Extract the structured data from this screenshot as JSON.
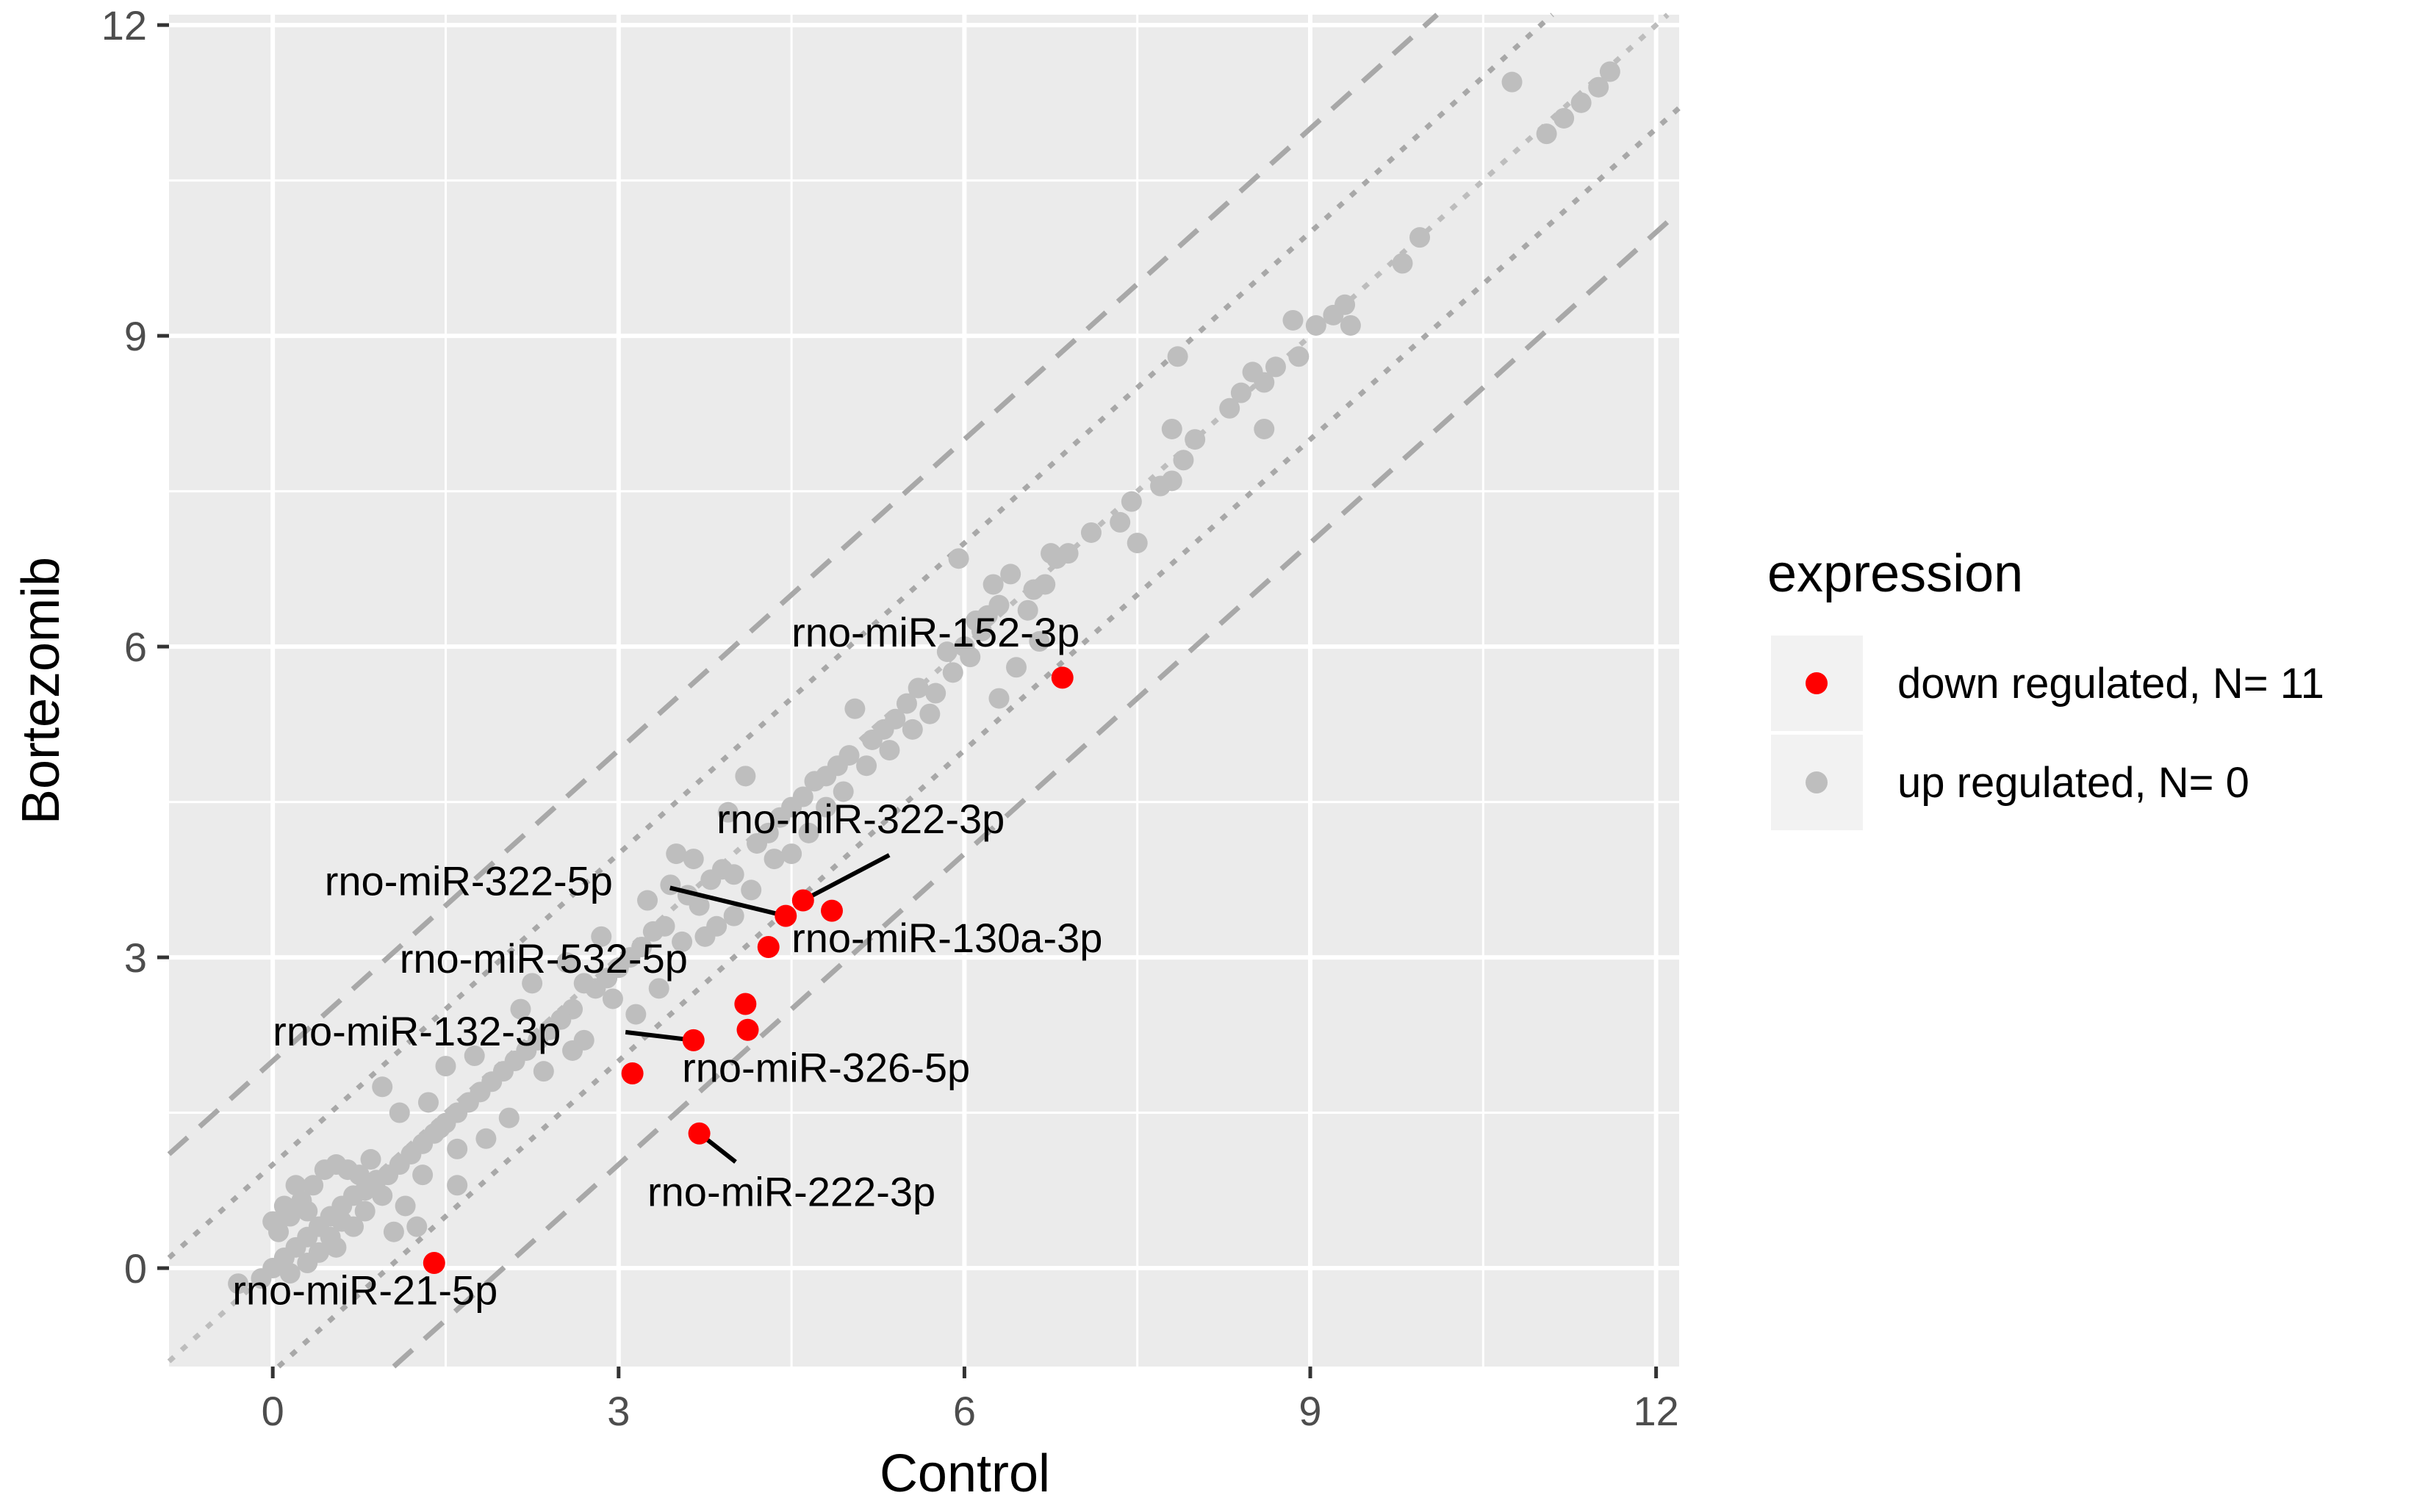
{
  "chart_data": {
    "type": "scatter",
    "xlabel": "Control",
    "ylabel": "Bortezomib",
    "xlim": [
      -0.9,
      12.2
    ],
    "ylim": [
      -0.95,
      12.1
    ],
    "xticks": [
      0,
      3,
      6,
      9,
      12
    ],
    "yticks": [
      0,
      3,
      6,
      9,
      12
    ],
    "grid": true,
    "legend": {
      "title": "expression",
      "position": "right",
      "entries": [
        {
          "label": "down regulated, N= 11",
          "color": "#ff0000"
        },
        {
          "label": "up regulated, N= 0",
          "color": "#bebebe"
        }
      ]
    },
    "reference_lines": [
      {
        "intercept": 0,
        "style": "dotted-light"
      },
      {
        "intercept": 1,
        "style": "dotted"
      },
      {
        "intercept": -1,
        "style": "dotted"
      },
      {
        "intercept": 2,
        "style": "dashed"
      },
      {
        "intercept": -2,
        "style": "dashed"
      }
    ],
    "series": [
      {
        "group": "down",
        "color": "#ff0000",
        "points": [
          {
            "x": 6.85,
            "y": 5.7,
            "label": "rno-miR-152-3p",
            "label_x": 4.5,
            "label_y": 6.0
          },
          {
            "x": 4.6,
            "y": 3.55,
            "label": "rno-miR-322-3p",
            "label_x": 3.85,
            "label_y": 4.2,
            "line": true
          },
          {
            "x": 4.3,
            "y": 3.1,
            "label": "rno-miR-130a-3p",
            "label_x": 4.5,
            "label_y": 3.05
          },
          {
            "x": 4.45,
            "y": 3.4,
            "label": "rno-miR-322-5p",
            "label_x": 0.45,
            "label_y": 3.6,
            "line": true
          },
          {
            "x": 4.85,
            "y": 3.45
          },
          {
            "x": 4.1,
            "y": 2.55,
            "label": "rno-miR-532-5p",
            "label_x": 1.1,
            "label_y": 2.85
          },
          {
            "x": 4.12,
            "y": 2.3
          },
          {
            "x": 3.65,
            "y": 2.2,
            "label": "rno-miR-132-3p",
            "label_x": 0.0,
            "label_y": 2.15,
            "line": true
          },
          {
            "x": 3.12,
            "y": 1.88,
            "label": "rno-miR-326-5p",
            "label_x": 3.55,
            "label_y": 1.8
          },
          {
            "x": 3.7,
            "y": 1.3,
            "label": "rno-miR-222-3p",
            "label_x": 3.25,
            "label_y": 0.6,
            "line": true
          },
          {
            "x": 1.4,
            "y": 0.05,
            "label": "rno-miR-21-5p",
            "label_x": -0.35,
            "label_y": -0.35
          }
        ]
      },
      {
        "group": "up",
        "color": "#bebebe",
        "points": [
          {
            "x": 10.75,
            "y": 11.45
          },
          {
            "x": 11.05,
            "y": 10.95
          },
          {
            "x": 11.2,
            "y": 11.1
          },
          {
            "x": 11.35,
            "y": 11.25
          },
          {
            "x": 11.5,
            "y": 11.4
          },
          {
            "x": 11.6,
            "y": 11.55
          },
          {
            "x": 9.95,
            "y": 9.95
          },
          {
            "x": 9.8,
            "y": 9.7
          },
          {
            "x": 9.3,
            "y": 9.3
          },
          {
            "x": 9.2,
            "y": 9.2
          },
          {
            "x": 9.35,
            "y": 9.1
          },
          {
            "x": 9.05,
            "y": 9.1
          },
          {
            "x": 8.85,
            "y": 9.15
          },
          {
            "x": 8.9,
            "y": 8.8
          },
          {
            "x": 8.7,
            "y": 8.7
          },
          {
            "x": 8.6,
            "y": 8.55
          },
          {
            "x": 8.5,
            "y": 8.65
          },
          {
            "x": 8.4,
            "y": 8.45
          },
          {
            "x": 8.3,
            "y": 8.3
          },
          {
            "x": 8.6,
            "y": 8.1
          },
          {
            "x": 7.85,
            "y": 8.8
          },
          {
            "x": 7.8,
            "y": 8.1
          },
          {
            "x": 8.0,
            "y": 8.0
          },
          {
            "x": 7.9,
            "y": 7.8
          },
          {
            "x": 7.8,
            "y": 7.6
          },
          {
            "x": 7.7,
            "y": 7.55
          },
          {
            "x": 7.45,
            "y": 7.4
          },
          {
            "x": 7.35,
            "y": 7.2
          },
          {
            "x": 7.5,
            "y": 7.0
          },
          {
            "x": 7.1,
            "y": 7.1
          },
          {
            "x": 6.9,
            "y": 6.9
          },
          {
            "x": 6.8,
            "y": 6.85
          },
          {
            "x": 6.6,
            "y": 6.55
          },
          {
            "x": 6.4,
            "y": 6.7
          },
          {
            "x": 6.3,
            "y": 6.4
          },
          {
            "x": 6.2,
            "y": 6.3
          },
          {
            "x": 6.1,
            "y": 6.25
          },
          {
            "x": 6.0,
            "y": 6.0
          },
          {
            "x": 5.95,
            "y": 6.85
          },
          {
            "x": 6.45,
            "y": 5.8
          },
          {
            "x": 6.3,
            "y": 5.5
          },
          {
            "x": 5.85,
            "y": 5.95
          },
          {
            "x": 5.75,
            "y": 5.55
          },
          {
            "x": 5.6,
            "y": 5.6
          },
          {
            "x": 5.5,
            "y": 5.45
          },
          {
            "x": 5.4,
            "y": 5.3
          },
          {
            "x": 5.3,
            "y": 5.2
          },
          {
            "x": 5.2,
            "y": 5.1
          },
          {
            "x": 5.05,
            "y": 5.4
          },
          {
            "x": 5.0,
            "y": 4.95
          },
          {
            "x": 4.9,
            "y": 4.85
          },
          {
            "x": 4.8,
            "y": 4.75
          },
          {
            "x": 4.7,
            "y": 4.7
          },
          {
            "x": 4.6,
            "y": 4.55
          },
          {
            "x": 4.5,
            "y": 4.45
          },
          {
            "x": 4.4,
            "y": 4.35
          },
          {
            "x": 4.3,
            "y": 4.2
          },
          {
            "x": 4.2,
            "y": 4.1
          },
          {
            "x": 4.1,
            "y": 4.75
          },
          {
            "x": 4.0,
            "y": 3.8
          },
          {
            "x": 3.9,
            "y": 3.85
          },
          {
            "x": 3.8,
            "y": 3.75
          },
          {
            "x": 3.7,
            "y": 3.5
          },
          {
            "x": 3.6,
            "y": 3.6
          },
          {
            "x": 3.5,
            "y": 4.0
          },
          {
            "x": 3.4,
            "y": 3.3
          },
          {
            "x": 3.3,
            "y": 3.25
          },
          {
            "x": 3.2,
            "y": 3.1
          },
          {
            "x": 3.1,
            "y": 3.0
          },
          {
            "x": 3.0,
            "y": 2.9
          },
          {
            "x": 2.9,
            "y": 2.8
          },
          {
            "x": 2.8,
            "y": 2.7
          },
          {
            "x": 2.7,
            "y": 2.75
          },
          {
            "x": 2.6,
            "y": 2.5
          },
          {
            "x": 2.5,
            "y": 2.4
          },
          {
            "x": 2.4,
            "y": 2.3
          },
          {
            "x": 2.3,
            "y": 2.2
          },
          {
            "x": 2.2,
            "y": 2.1
          },
          {
            "x": 2.1,
            "y": 2.0
          },
          {
            "x": 2.0,
            "y": 1.9
          },
          {
            "x": 1.9,
            "y": 1.8
          },
          {
            "x": 1.8,
            "y": 1.7
          },
          {
            "x": 1.7,
            "y": 1.6
          },
          {
            "x": 1.6,
            "y": 1.5
          },
          {
            "x": 1.5,
            "y": 1.4
          },
          {
            "x": 1.4,
            "y": 1.3
          },
          {
            "x": 1.3,
            "y": 1.2
          },
          {
            "x": 1.2,
            "y": 1.1
          },
          {
            "x": 1.1,
            "y": 1.0
          },
          {
            "x": 1.0,
            "y": 0.9
          },
          {
            "x": 0.9,
            "y": 0.85
          },
          {
            "x": 0.8,
            "y": 0.75
          },
          {
            "x": 0.7,
            "y": 0.7
          },
          {
            "x": 0.6,
            "y": 0.6
          },
          {
            "x": 0.5,
            "y": 0.5
          },
          {
            "x": 0.4,
            "y": 0.4
          },
          {
            "x": 0.3,
            "y": 0.3
          },
          {
            "x": 0.2,
            "y": 0.2
          },
          {
            "x": 0.1,
            "y": 0.1
          },
          {
            "x": 0.0,
            "y": 0.0
          },
          {
            "x": -0.1,
            "y": -0.1
          },
          {
            "x": -0.3,
            "y": -0.15
          },
          {
            "x": 0.05,
            "y": 0.35
          },
          {
            "x": 0.15,
            "y": 0.5
          },
          {
            "x": 0.25,
            "y": 0.65
          },
          {
            "x": 0.35,
            "y": 0.8
          },
          {
            "x": 0.45,
            "y": 0.95
          },
          {
            "x": 0.55,
            "y": 1.0
          },
          {
            "x": 0.65,
            "y": 0.95
          },
          {
            "x": 0.75,
            "y": 0.9
          },
          {
            "x": 0.85,
            "y": 1.05
          },
          {
            "x": 0.95,
            "y": 0.7
          },
          {
            "x": 0.2,
            "y": 0.8
          },
          {
            "x": 0.3,
            "y": 0.55
          },
          {
            "x": 0.1,
            "y": 0.6
          },
          {
            "x": 0.0,
            "y": 0.45
          },
          {
            "x": 0.5,
            "y": 0.3
          },
          {
            "x": 0.6,
            "y": 0.45
          },
          {
            "x": 0.7,
            "y": 0.4
          },
          {
            "x": 0.4,
            "y": 0.15
          },
          {
            "x": 0.3,
            "y": 0.05
          },
          {
            "x": 0.15,
            "y": -0.05
          },
          {
            "x": 0.55,
            "y": 0.2
          },
          {
            "x": 0.8,
            "y": 0.55
          },
          {
            "x": 1.15,
            "y": 0.6
          },
          {
            "x": 1.3,
            "y": 0.9
          },
          {
            "x": 1.25,
            "y": 0.4
          },
          {
            "x": 1.05,
            "y": 0.35
          },
          {
            "x": 1.45,
            "y": 1.35
          },
          {
            "x": 1.6,
            "y": 1.15
          },
          {
            "x": 1.5,
            "y": 1.95
          },
          {
            "x": 1.85,
            "y": 1.25
          },
          {
            "x": 2.05,
            "y": 1.45
          },
          {
            "x": 2.35,
            "y": 1.9
          },
          {
            "x": 1.6,
            "y": 0.8
          },
          {
            "x": 1.1,
            "y": 1.5
          },
          {
            "x": 0.95,
            "y": 1.75
          },
          {
            "x": 1.35,
            "y": 1.6
          },
          {
            "x": 2.25,
            "y": 2.75
          },
          {
            "x": 2.55,
            "y": 2.95
          },
          {
            "x": 2.7,
            "y": 2.2
          },
          {
            "x": 2.95,
            "y": 2.6
          },
          {
            "x": 3.15,
            "y": 2.45
          },
          {
            "x": 3.35,
            "y": 2.7
          },
          {
            "x": 3.25,
            "y": 3.55
          },
          {
            "x": 3.45,
            "y": 3.7
          },
          {
            "x": 3.55,
            "y": 3.15
          },
          {
            "x": 3.75,
            "y": 3.2
          },
          {
            "x": 3.85,
            "y": 3.3
          },
          {
            "x": 4.0,
            "y": 3.4
          },
          {
            "x": 4.15,
            "y": 3.65
          },
          {
            "x": 4.35,
            "y": 3.95
          },
          {
            "x": 4.5,
            "y": 4.0
          },
          {
            "x": 4.65,
            "y": 4.2
          },
          {
            "x": 4.8,
            "y": 4.45
          },
          {
            "x": 4.95,
            "y": 4.6
          },
          {
            "x": 5.15,
            "y": 4.85
          },
          {
            "x": 5.35,
            "y": 5.0
          },
          {
            "x": 5.55,
            "y": 5.2
          },
          {
            "x": 5.7,
            "y": 5.35
          },
          {
            "x": 5.9,
            "y": 5.75
          },
          {
            "x": 6.05,
            "y": 5.9
          },
          {
            "x": 6.15,
            "y": 6.15
          },
          {
            "x": 6.55,
            "y": 6.35
          },
          {
            "x": 6.7,
            "y": 6.6
          },
          {
            "x": 6.75,
            "y": 6.9
          },
          {
            "x": 6.65,
            "y": 6.05
          },
          {
            "x": 6.25,
            "y": 6.6
          },
          {
            "x": 3.95,
            "y": 4.4
          },
          {
            "x": 3.65,
            "y": 3.95
          },
          {
            "x": 2.85,
            "y": 3.2
          },
          {
            "x": 2.6,
            "y": 2.1
          },
          {
            "x": 2.15,
            "y": 2.5
          },
          {
            "x": 1.75,
            "y": 2.05
          }
        ]
      }
    ]
  }
}
